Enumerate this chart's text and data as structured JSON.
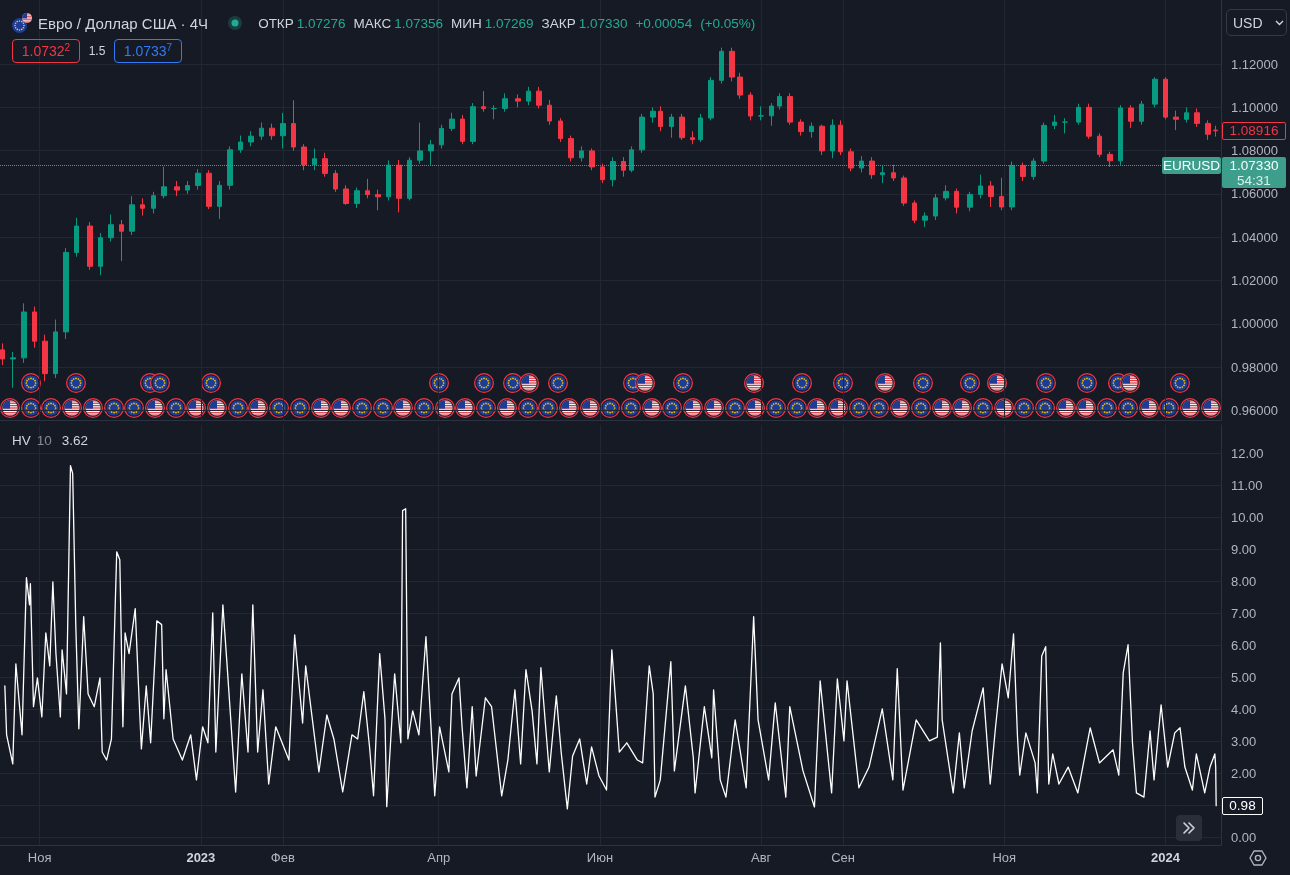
{
  "chart_data": [
    {
      "type": "candlestick",
      "title": "Евро / Доллар США · 4Ч",
      "subtitle": "ОТКР 1.07276 МАКС 1.07356 МИН 1.07269 ЗАКР 1.07330 +0.00054 (+0.05%)",
      "annotations": [
        "1.0732$^{2}$",
        "1.5",
        "1.0733$^{7}$",
        "USD",
        "1.08916",
        "1.07330",
        "54:31"
      ],
      "x": [
        "2022-10-18",
        "2022-10-22",
        "2022-10-26",
        "2022-10-30",
        "2022-11-03",
        "2022-11-07",
        "2022-11-11",
        "2022-11-15",
        "2022-11-20",
        "2022-11-24",
        "2022-11-28",
        "2022-12-02",
        "2022-12-06",
        "2022-12-10",
        "2022-12-14",
        "2022-12-18",
        "2022-12-23",
        "2022-12-27",
        "2022-12-31",
        "2023-01-04",
        "2023-01-08",
        "2023-01-12",
        "2023-01-16",
        "2023-01-20",
        "2023-01-24",
        "2023-01-28",
        "2023-02-01",
        "2023-02-05",
        "2023-02-09",
        "2023-02-13",
        "2023-02-17",
        "2023-02-21",
        "2023-02-25",
        "2023-03-01",
        "2023-03-05",
        "2023-03-09",
        "2023-03-13",
        "2023-03-17",
        "2023-03-21",
        "2023-03-25",
        "2023-03-29",
        "2023-04-02",
        "2023-04-06",
        "2023-04-10",
        "2023-04-14",
        "2023-04-18",
        "2023-04-22",
        "2023-04-26",
        "2023-05-01",
        "2023-05-05",
        "2023-05-09",
        "2023-05-13",
        "2023-05-17",
        "2023-05-21",
        "2023-05-25",
        "2023-05-29",
        "2023-06-02",
        "2023-06-06",
        "2023-06-10",
        "2023-06-13",
        "2023-06-17",
        "2023-06-21",
        "2023-06-24",
        "2023-06-28",
        "2023-07-02",
        "2023-07-06",
        "2023-07-09",
        "2023-07-13",
        "2023-07-17",
        "2023-07-21",
        "2023-07-24",
        "2023-07-28",
        "2023-08-01",
        "2023-08-05",
        "2023-08-08",
        "2023-08-12",
        "2023-08-16",
        "2023-08-20",
        "2023-08-24",
        "2023-08-28",
        "2023-08-31",
        "2023-09-04",
        "2023-09-08",
        "2023-09-12",
        "2023-09-16",
        "2023-09-20",
        "2023-09-24",
        "2023-09-28",
        "2023-10-02",
        "2023-10-06",
        "2023-10-10",
        "2023-10-14",
        "2023-10-19",
        "2023-10-23",
        "2023-10-27",
        "2023-10-31",
        "2023-11-04",
        "2023-11-08",
        "2023-11-12",
        "2023-11-16",
        "2023-11-20",
        "2023-11-24",
        "2023-11-29",
        "2023-12-03",
        "2023-12-07",
        "2023-12-11",
        "2023-12-15",
        "2023-12-19",
        "2023-12-23",
        "2023-12-28",
        "2024-01-01",
        "2024-01-05",
        "2024-01-09",
        "2024-01-13",
        "2024-01-17",
        "2024-01-20"
      ],
      "ohlc": [
        [
          0.988,
          0.991,
          0.981,
          0.9838
        ],
        [
          0.9838,
          0.987,
          0.9705,
          0.9843
        ],
        [
          0.9843,
          1.0095,
          0.982,
          1.0055
        ],
        [
          1.0055,
          1.008,
          0.989,
          0.992
        ],
        [
          0.992,
          0.995,
          0.9735,
          0.977
        ],
        [
          0.977,
          1.002,
          0.975,
          0.9963
        ],
        [
          0.9963,
          1.035,
          0.993,
          1.033
        ],
        [
          1.033,
          1.049,
          1.031,
          1.0452
        ],
        [
          1.0452,
          1.047,
          1.025,
          1.0266
        ],
        [
          1.0266,
          1.042,
          1.0225,
          1.0398
        ],
        [
          1.0398,
          1.0505,
          1.038,
          1.0458
        ],
        [
          1.0458,
          1.048,
          1.029,
          1.0428
        ],
        [
          1.0428,
          1.059,
          1.041,
          1.055
        ],
        [
          1.055,
          1.058,
          1.05,
          1.0534
        ],
        [
          1.0534,
          1.061,
          1.051,
          1.0592
        ],
        [
          1.0592,
          1.0726,
          1.058,
          1.0633
        ],
        [
          1.0633,
          1.066,
          1.059,
          1.0618
        ],
        [
          1.0618,
          1.066,
          1.06,
          1.0639
        ],
        [
          1.0639,
          1.0715,
          1.062,
          1.0696
        ],
        [
          1.0696,
          1.071,
          1.053,
          1.0543
        ],
        [
          1.0543,
          1.066,
          1.0485,
          1.064
        ],
        [
          1.064,
          1.082,
          1.062,
          1.0804
        ],
        [
          1.0804,
          1.087,
          1.079,
          1.084
        ],
        [
          1.084,
          1.089,
          1.082,
          1.0867
        ],
        [
          1.0867,
          1.093,
          1.085,
          1.0904
        ],
        [
          1.0904,
          1.0925,
          1.085,
          1.0869
        ],
        [
          1.0869,
          1.0975,
          1.081,
          1.0925
        ],
        [
          1.0925,
          1.1033,
          1.08,
          1.0817
        ],
        [
          1.0817,
          1.083,
          1.071,
          1.0736
        ],
        [
          1.0736,
          1.081,
          1.071,
          1.0763
        ],
        [
          1.0763,
          1.079,
          1.068,
          1.0695
        ],
        [
          1.0695,
          1.071,
          1.061,
          1.0623
        ],
        [
          1.0623,
          1.064,
          1.055,
          1.0556
        ],
        [
          1.0556,
          1.063,
          1.0535,
          1.0615
        ],
        [
          1.0615,
          1.067,
          1.058,
          1.0597
        ],
        [
          1.0597,
          1.062,
          1.0525,
          1.0587
        ],
        [
          1.0587,
          1.0755,
          1.057,
          1.0733
        ],
        [
          1.0733,
          1.0757,
          1.0515,
          1.058
        ],
        [
          1.058,
          1.077,
          1.057,
          1.0756
        ],
        [
          1.0756,
          1.093,
          1.074,
          1.0799
        ],
        [
          1.0799,
          1.085,
          1.0735,
          1.0827
        ],
        [
          1.0827,
          1.092,
          1.081,
          1.0903
        ],
        [
          1.0903,
          1.0975,
          1.089,
          1.0946
        ],
        [
          1.0946,
          1.0965,
          1.083,
          1.0843
        ],
        [
          1.0843,
          1.102,
          1.083,
          1.1003
        ],
        [
          1.1003,
          1.1075,
          1.098,
          1.0994
        ],
        [
          1.0994,
          1.101,
          1.0945,
          1.0995
        ],
        [
          1.0995,
          1.1065,
          1.098,
          1.104
        ],
        [
          1.104,
          1.106,
          1.1,
          1.1029
        ],
        [
          1.1029,
          1.1095,
          1.101,
          1.1075
        ],
        [
          1.1075,
          1.1095,
          1.0995,
          1.101
        ],
        [
          1.101,
          1.1035,
          1.092,
          1.0937
        ],
        [
          1.0937,
          1.095,
          1.084,
          1.0856
        ],
        [
          1.0856,
          1.087,
          1.075,
          1.0767
        ],
        [
          1.0767,
          1.082,
          1.075,
          1.0799
        ],
        [
          1.0799,
          1.081,
          1.071,
          1.0725
        ],
        [
          1.0725,
          1.074,
          1.065,
          1.0666
        ],
        [
          1.0666,
          1.077,
          1.0635,
          1.075
        ],
        [
          1.075,
          1.077,
          1.068,
          1.071
        ],
        [
          1.071,
          1.082,
          1.07,
          1.0804
        ],
        [
          1.0804,
          1.097,
          1.079,
          1.0955
        ],
        [
          1.0955,
          1.1,
          1.093,
          1.0982
        ],
        [
          1.0982,
          1.1005,
          1.089,
          1.0912
        ],
        [
          1.0912,
          1.097,
          1.086,
          1.0955
        ],
        [
          1.0955,
          1.097,
          1.085,
          1.086
        ],
        [
          1.086,
          1.089,
          1.083,
          1.0851
        ],
        [
          1.0851,
          1.097,
          1.084,
          1.0951
        ],
        [
          1.0951,
          1.114,
          1.094,
          1.1125
        ],
        [
          1.1125,
          1.1276,
          1.111,
          1.1259
        ],
        [
          1.1259,
          1.1276,
          1.112,
          1.114
        ],
        [
          1.114,
          1.116,
          1.104,
          1.1057
        ],
        [
          1.1057,
          1.107,
          1.094,
          1.096
        ],
        [
          1.096,
          1.1005,
          1.094,
          1.0961
        ],
        [
          1.0961,
          1.102,
          1.0915,
          1.1006
        ],
        [
          1.1006,
          1.1065,
          1.099,
          1.105
        ],
        [
          1.105,
          1.1065,
          1.092,
          1.0932
        ],
        [
          1.0932,
          1.0945,
          1.087,
          1.0888
        ],
        [
          1.0888,
          1.093,
          1.086,
          1.0913
        ],
        [
          1.0913,
          1.092,
          1.078,
          1.0799
        ],
        [
          1.0799,
          1.0945,
          1.0765,
          1.0918
        ],
        [
          1.0918,
          1.094,
          1.078,
          1.0795
        ],
        [
          1.0795,
          1.081,
          1.0705,
          1.072
        ],
        [
          1.072,
          1.0775,
          1.07,
          1.0752
        ],
        [
          1.0752,
          1.077,
          1.067,
          1.0689
        ],
        [
          1.0689,
          1.073,
          1.065,
          1.0698
        ],
        [
          1.0698,
          1.0735,
          1.066,
          1.0674
        ],
        [
          1.0674,
          1.0685,
          1.0545,
          1.0558
        ],
        [
          1.0558,
          1.057,
          1.0465,
          1.0479
        ],
        [
          1.0479,
          1.0515,
          1.0448,
          1.0498
        ],
        [
          1.0498,
          1.06,
          1.048,
          1.0582
        ],
        [
          1.0582,
          1.064,
          1.057,
          1.0612
        ],
        [
          1.0612,
          1.0625,
          1.051,
          1.0539
        ],
        [
          1.0539,
          1.061,
          1.052,
          1.0598
        ],
        [
          1.0598,
          1.069,
          1.058,
          1.0637
        ],
        [
          1.0637,
          1.066,
          1.054,
          1.0588
        ],
        [
          1.0588,
          1.0675,
          1.0525,
          1.054
        ],
        [
          1.054,
          1.075,
          1.0525,
          1.0732
        ],
        [
          1.0732,
          1.0745,
          1.066,
          1.0681
        ],
        [
          1.0681,
          1.0765,
          1.0665,
          1.0752
        ],
        [
          1.0752,
          1.093,
          1.074,
          1.0917
        ],
        [
          1.0917,
          1.0965,
          1.09,
          1.0932
        ],
        [
          1.0932,
          1.095,
          1.088,
          1.0932
        ],
        [
          1.0932,
          1.1017,
          1.092,
          1.1
        ],
        [
          1.1,
          1.1017,
          1.0855,
          1.0867
        ],
        [
          1.0867,
          1.088,
          1.077,
          1.0783
        ],
        [
          1.0783,
          1.0795,
          1.0725,
          1.0753
        ],
        [
          1.0753,
          1.101,
          1.0735,
          1.0997
        ],
        [
          1.0997,
          1.101,
          1.0905,
          1.0936
        ],
        [
          1.0936,
          1.103,
          1.092,
          1.1015
        ],
        [
          1.1015,
          1.1139,
          1.1,
          1.113
        ],
        [
          1.113,
          1.1139,
          1.0945,
          1.0955
        ],
        [
          1.0955,
          1.0985,
          1.0895,
          1.0945
        ],
        [
          1.0945,
          1.1,
          1.093,
          1.0975
        ],
        [
          1.0975,
          1.0995,
          1.091,
          1.0926
        ],
        [
          1.0926,
          1.094,
          1.085,
          1.0876
        ],
        [
          1.0895,
          1.0915,
          1.0865,
          1.08916
        ]
      ],
      "xlim": [
        "2022-10-17",
        "2024-01-22"
      ],
      "xticks": [
        {
          "value": "2022-11-01",
          "label": null
        },
        {
          "value": "2023-01-01",
          "label": null
        },
        {
          "value": "2023-02-01",
          "label": null
        },
        {
          "value": "2023-04-01",
          "label": null
        },
        {
          "value": "2023-06-01",
          "label": null
        },
        {
          "value": "2023-08-01",
          "label": null
        },
        {
          "value": "2023-09-01",
          "label": null
        },
        {
          "value": "2023-11-01",
          "label": null
        },
        {
          "value": "2024-01-01",
          "label": null
        }
      ],
      "ylim": [
        0.9556,
        1.1496
      ],
      "yticks": [
        {
          "value": 0.96,
          "label": "0.96000"
        },
        {
          "value": 0.98,
          "label": "0.98000"
        },
        {
          "value": 1.0,
          "label": "1.00000"
        },
        {
          "value": 1.02,
          "label": "1.02000"
        },
        {
          "value": 1.04,
          "label": "1.04000"
        },
        {
          "value": 1.06,
          "label": "1.06000"
        },
        {
          "value": 1.08,
          "label": "1.08000"
        },
        {
          "value": 1.1,
          "label": "1.10000"
        },
        {
          "value": 1.12,
          "label": "1.12000"
        }
      ],
      "ref_lines": [
        {
          "axis": "y",
          "value": 1.0733,
          "label": "EURUSD",
          "color": "#3d9e8c",
          "line_style": "dotted"
        }
      ],
      "grid": true,
      "tick_labels": "y"
    },
    {
      "type": "line",
      "title": "HV 10",
      "annotations": [
        "3.62",
        "0.98"
      ],
      "color": "#ffffff",
      "marker": "none",
      "x": [
        "2022-10-18T20:00",
        "2022-10-19T12:00",
        "2022-10-21T20:00",
        "2022-10-23T00:00",
        "2022-10-25T08:00",
        "2022-10-27T00:00",
        "2022-10-28T04:00",
        "2022-10-28T12:00",
        "2022-10-29T16:00",
        "2022-10-31T04:00",
        "2022-11-01T20:00",
        "2022-11-03T08:00",
        "2022-11-04T20:00",
        "2022-11-06T00:00",
        "2022-11-07T04:00",
        "2022-11-08T20:00",
        "2022-11-09T12:00",
        "2022-11-11T04:00",
        "2022-11-12T16:00",
        "2022-11-13T12:00",
        "2022-11-14T16:00",
        "2022-11-15T20:00",
        "2022-11-17T16:00",
        "2022-11-19T08:00",
        "2022-11-21T16:00",
        "2022-11-23T20:00",
        "2022-11-24T16:00",
        "2022-11-26T08:00",
        "2022-11-28T04:00",
        "2022-11-30T04:00",
        "2022-12-01T08:00",
        "2022-12-02T12:00",
        "2022-12-03T08:00",
        "2022-12-04T20:00",
        "2022-12-07T04:00",
        "2022-12-08T08:00",
        "2022-12-09T12:00",
        "2022-12-11T08:00",
        "2022-12-13T00:00",
        "2022-12-15T08:00",
        "2022-12-17T04:00",
        "2022-12-18T00:00",
        "2022-12-18T20:00",
        "2022-12-21T12:00",
        "2022-12-25T00:00",
        "2022-12-28T04:00",
        "2022-12-30T08:00",
        "2023-01-01T16:00",
        "2023-01-03T16:00",
        "2023-01-05T12:00",
        "2023-01-06T16:00",
        "2023-01-09T08:00",
        "2023-01-10T20:00",
        "2023-01-14T04:00",
        "2023-01-16T12:00",
        "2023-01-18T20:00",
        "2023-01-20T16:00",
        "2023-01-22T12:00",
        "2023-01-24T12:00",
        "2023-01-26T16:00",
        "2023-01-29T08:00",
        "2023-02-03T08:00",
        "2023-02-05T12:00",
        "2023-02-08T12:00",
        "2023-02-09T16:00",
        "2023-02-14T16:00",
        "2023-02-17T16:00",
        "2023-02-20T08:00",
        "2023-02-23T16:00",
        "2023-02-27T04:00",
        "2023-03-01T08:00",
        "2023-03-03T16:00",
        "2023-03-05T20:00",
        "2023-03-07T08:00",
        "2023-03-09T16:00",
        "2023-03-11T16:00",
        "2023-03-12T08:00",
        "2023-03-15T08:00",
        "2023-03-17T16:00",
        "2023-03-18T08:00",
        "2023-03-19T12:00",
        "2023-03-20T08:00",
        "2023-03-22T04:00",
        "2023-03-24T12:00",
        "2023-03-27T04:00",
        "2023-03-29T00:00",
        "2023-03-30T12:00",
        "2023-04-01T08:00",
        "2023-04-04T20:00",
        "2023-04-06T00:00",
        "2023-04-08T16:00",
        "2023-04-09T20:00",
        "2023-04-11T16:00",
        "2023-04-13T16:00",
        "2023-04-15T04:00",
        "2023-04-18T16:00",
        "2023-04-21T00:00",
        "2023-04-24T20:00",
        "2023-04-27T04:00",
        "2023-04-29T20:00",
        "2023-05-02T00:00",
        "2023-05-04T00:00",
        "2023-05-06T08:00",
        "2023-05-08T04:00",
        "2023-05-09T16:00",
        "2023-05-12T20:00",
        "2023-05-15T12:00",
        "2023-05-17T08:00",
        "2023-05-19T16:00",
        "2023-05-21T16:00",
        "2023-05-24T08:00",
        "2023-05-27T00:00",
        "2023-05-28T20:00",
        "2023-05-31T16:00",
        "2023-06-03T12:00",
        "2023-06-05T12:00",
        "2023-06-07T00:00",
        "2023-06-08T08:00",
        "2023-06-11T04:00",
        "2023-06-15T04:00",
        "2023-06-17T04:00",
        "2023-06-19T16:00",
        "2023-06-21T04:00",
        "2023-06-21T20:00",
        "2023-06-23T20:00",
        "2023-06-27T20:00",
        "2023-06-29T04:00",
        "2023-07-03T08:00",
        "2023-07-06T08:00",
        "2023-07-07T00:00",
        "2023-07-10T12:00",
        "2023-07-13T08:00",
        "2023-07-14T00:00",
        "2023-07-16T12:00",
        "2023-07-18T16:00",
        "2023-07-22T04:00",
        "2023-07-26T08:00",
        "2023-07-29T04:00",
        "2023-07-30T20:00",
        "2023-08-03T20:00",
        "2023-08-06T08:00",
        "2023-08-10T08:00",
        "2023-08-11T20:00",
        "2023-08-16T20:00",
        "2023-08-21T04:00",
        "2023-08-23T08:00",
        "2023-08-27T16:00",
        "2023-08-29T20:00",
        "2023-09-01T08:00",
        "2023-09-02T12:00",
        "2023-09-07T00:00",
        "2023-09-10T20:00",
        "2023-09-15T20:00",
        "2023-09-19T20:00",
        "2023-09-21T12:00",
        "2023-09-23T16:00",
        "2023-09-28T16:00",
        "2023-10-03T16:00",
        "2023-10-06T16:00",
        "2023-10-07T20:00",
        "2023-10-08T12:00",
        "2023-10-12T16:00",
        "2023-10-15T00:00",
        "2023-10-16T20:00",
        "2023-10-19T20:00",
        "2023-10-24T00:00",
        "2023-10-26T16:00",
        "2023-10-28T16:00",
        "2023-10-31T04:00",
        "2023-11-02T12:00",
        "2023-11-04T12:00",
        "2023-11-06T00:00",
        "2023-11-06T20:00",
        "2023-11-09T04:00",
        "2023-11-12T16:00",
        "2023-11-13T12:00",
        "2023-11-15T04:00",
        "2023-11-16T16:00",
        "2023-11-17T20:00",
        "2023-11-19T08:00",
        "2023-11-21T16:00",
        "2023-11-25T04:00",
        "2023-11-28T20:00",
        "2023-12-03T12:00",
        "2023-12-07T00:00",
        "2023-12-12T04:00",
        "2023-12-14T08:00",
        "2023-12-16T00:00",
        "2023-12-17T20:00",
        "2023-12-19T12:00",
        "2023-12-21T00:00",
        "2023-12-23T20:00",
        "2023-12-26T04:00",
        "2023-12-27T16:00",
        "2023-12-30T08:00",
        "2024-01-01T20:00",
        "2024-01-04T12:00",
        "2024-01-06T12:00",
        "2024-01-08T08:00",
        "2024-01-11T04:00",
        "2024-01-12T16:00",
        "2024-01-15T20:00",
        "2024-01-17T20:00",
        "2024-01-19T16:00",
        "2024-01-20T00:00",
        "2024-01-20T04:00"
      ],
      "values": [
        4.73,
        3.2,
        2.29,
        5.42,
        3.2,
        8.12,
        7.27,
        7.93,
        4.08,
        4.98,
        3.76,
        6.39,
        5.36,
        7.99,
        5.74,
        3.76,
        5.86,
        4.48,
        11.63,
        11.38,
        6.65,
        3.39,
        6.9,
        4.48,
        4.08,
        4.98,
        2.66,
        2.41,
        3.07,
        8.93,
        8.68,
        3.45,
        6.39,
        5.74,
        7.15,
        4.86,
        2.76,
        4.73,
        2.95,
        6.77,
        6.65,
        3.7,
        5.24,
        3.07,
        2.41,
        3.2,
        1.79,
        3.45,
        2.95,
        7.02,
        2.66,
        7.27,
        5.49,
        1.41,
        5.11,
        2.66,
        7.27,
        2.66,
        4.61,
        1.66,
        3.45,
        2.41,
        6.33,
        3.57,
        5.36,
        2.04,
        3.82,
        3.07,
        1.41,
        3.2,
        3.07,
        4.55,
        2.82,
        1.29,
        5.74,
        3.7,
        0.95,
        5.11,
        2.95,
        10.22,
        10.28,
        3.07,
        3.95,
        3.2,
        6.27,
        3.57,
        1.29,
        3.45,
        2.04,
        4.48,
        4.98,
        3.45,
        1.54,
        4.08,
        1.91,
        4.36,
        4.08,
        1.29,
        2.41,
        4.61,
        2.29,
        5.24,
        3.95,
        2.29,
        5.3,
        2.04,
        4.42,
        2.66,
        0.88,
        2.54,
        3.07,
        1.66,
        2.82,
        1.91,
        1.47,
        5.86,
        4.2,
        2.66,
        2.95,
        2.41,
        2.32,
        5.36,
        4.48,
        1.25,
        1.79,
        5.49,
        2.07,
        4.73,
        2.48,
        1.38,
        4.08,
        2.48,
        4.61,
        1.79,
        1.25,
        3.67,
        1.54,
        6.9,
        3.67,
        1.79,
        4.2,
        1.25,
        4.08,
        2.07,
        0.94,
        4.89,
        1.38,
        4.95,
        3.01,
        4.89,
        1.54,
        2.19,
        4.01,
        1.79,
        5.27,
        1.47,
        3.67,
        3.01,
        3.13,
        6.08,
        3.67,
        1.38,
        3.26,
        1.54,
        3.32,
        4.67,
        1.66,
        3.42,
        5.42,
        4.36,
        6.36,
        3.13,
        1.94,
        3.26,
        2.32,
        1.38,
        5.67,
        5.96,
        1.66,
        2.6,
        1.66,
        2.19,
        1.38,
        3.42,
        2.32,
        2.73,
        1.94,
        5.14,
        6.02,
        2.95,
        1.38,
        1.25,
        3.32,
        1.79,
        4.14,
        2.19,
        3.26,
        3.42,
        2.19,
        1.47,
        2.6,
        1.38,
        2.19,
        2.6,
        2.19,
        0.98
      ],
      "xlim": [
        "2022-10-17",
        "2024-01-22"
      ],
      "xticks": [
        {
          "value": "2022-11-01",
          "label": "Ноя"
        },
        {
          "value": "2023-01-01",
          "label": "2023"
        },
        {
          "value": "2023-02-01",
          "label": "Фев"
        },
        {
          "value": "2023-04-01",
          "label": "Апр"
        },
        {
          "value": "2023-06-01",
          "label": "Июн"
        },
        {
          "value": "2023-08-01",
          "label": "Авг"
        },
        {
          "value": "2023-09-01",
          "label": "Сен"
        },
        {
          "value": "2023-11-01",
          "label": "Ноя"
        },
        {
          "value": "2024-01-01",
          "label": "2024"
        }
      ],
      "ylim": [
        -0.25,
        12.9
      ],
      "yticks": [
        {
          "value": 0,
          "label": "0.00"
        },
        {
          "value": 1,
          "label": null
        },
        {
          "value": 2,
          "label": "2.00"
        },
        {
          "value": 3,
          "label": "3.00"
        },
        {
          "value": 4,
          "label": "4.00"
        },
        {
          "value": 5,
          "label": "5.00"
        },
        {
          "value": 6,
          "label": "6.00"
        },
        {
          "value": 7,
          "label": "7.00"
        },
        {
          "value": 8,
          "label": "8.00"
        },
        {
          "value": 9,
          "label": "9.00"
        },
        {
          "value": 10,
          "label": "10.00"
        },
        {
          "value": 11,
          "label": "11.00"
        },
        {
          "value": 12,
          "label": "12.00"
        }
      ],
      "grid": true
    }
  ]
}
